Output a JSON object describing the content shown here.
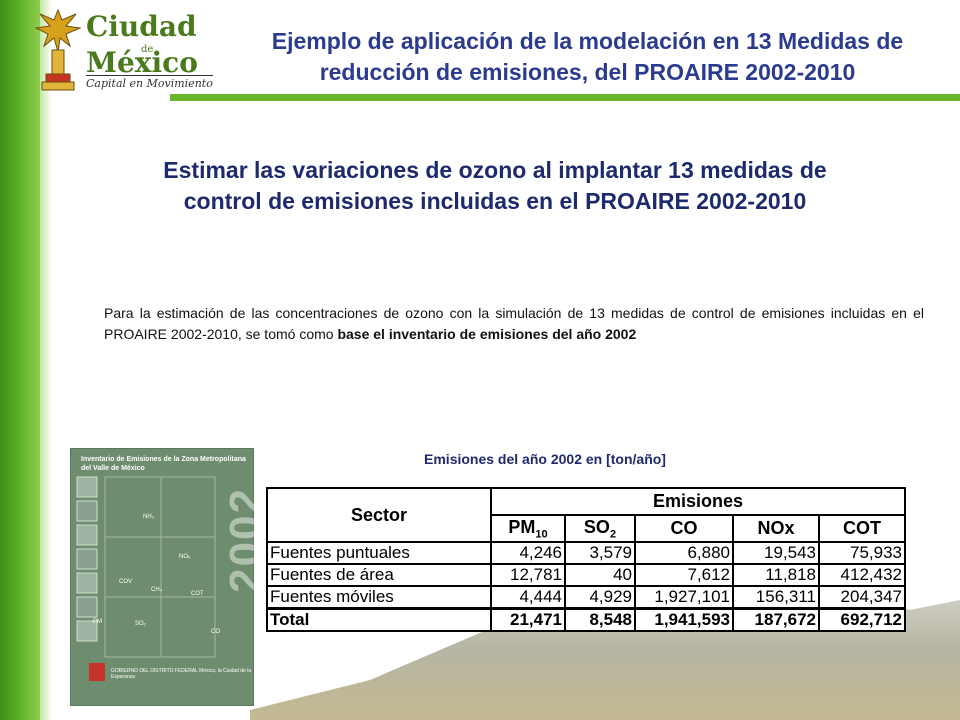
{
  "logo": {
    "line1": "Ciudad",
    "de": "de",
    "line2": "México",
    "tagline": "Capital en Movimiento"
  },
  "header": {
    "title": "Ejemplo de aplicación de la modelación en 13 Medidas de reducción de emisiones, del PROAIRE 2002-2010"
  },
  "subtitle": "Estimar las variaciones de ozono al implantar 13 medidas de control de emisiones incluidas en el PROAIRE 2002-2010",
  "body": {
    "text": "Para la estimación de las concentraciones de ozono con la simulación de 13 medidas de control de emisiones incluidas en el PROAIRE 2002-2010, se tomó como ",
    "bold": "base el inventario de emisiones del año 2002"
  },
  "cover": {
    "title": "Inventario de Emisiones de la Zona Metropolitana del Valle de México",
    "year": "2002",
    "labels": [
      "NH₃",
      "COV",
      "NOₓ",
      "CH₄",
      "COT",
      "PM",
      "SO₂",
      "CO"
    ],
    "footer": "GOBIERNO DEL DISTRITO FEDERAL México, la Ciudad de la Esperanza"
  },
  "table": {
    "title": "Emisiones del año 2002 en [ton/año]",
    "header_sector": "Sector",
    "header_emisiones": "Emisiones",
    "pollutants": {
      "pm_base": "PM",
      "pm_sub": "10",
      "so_base": "SO",
      "so_sub": "2",
      "co": "CO",
      "nox": "NOx",
      "cot": "COT"
    },
    "rows": [
      {
        "sector": "Fuentes puntuales",
        "pm10": "4,246",
        "so2": "3,579",
        "co": "6,880",
        "nox": "19,543",
        "cot": "75,933"
      },
      {
        "sector": "Fuentes de área",
        "pm10": "12,781",
        "so2": "40",
        "co": "7,612",
        "nox": "11,818",
        "cot": "412,432"
      },
      {
        "sector": "Fuentes móviles",
        "pm10": "4,444",
        "so2": "4,929",
        "co": "1,927,101",
        "nox": "156,311",
        "cot": "204,347"
      }
    ],
    "total": {
      "sector": "Total",
      "pm10": "21,471",
      "so2": "8,548",
      "co": "1,941,593",
      "nox": "187,672",
      "cot": "692,712"
    }
  },
  "colors": {
    "accent_green": "#6bb52c",
    "title_blue": "#2b3b8f"
  }
}
